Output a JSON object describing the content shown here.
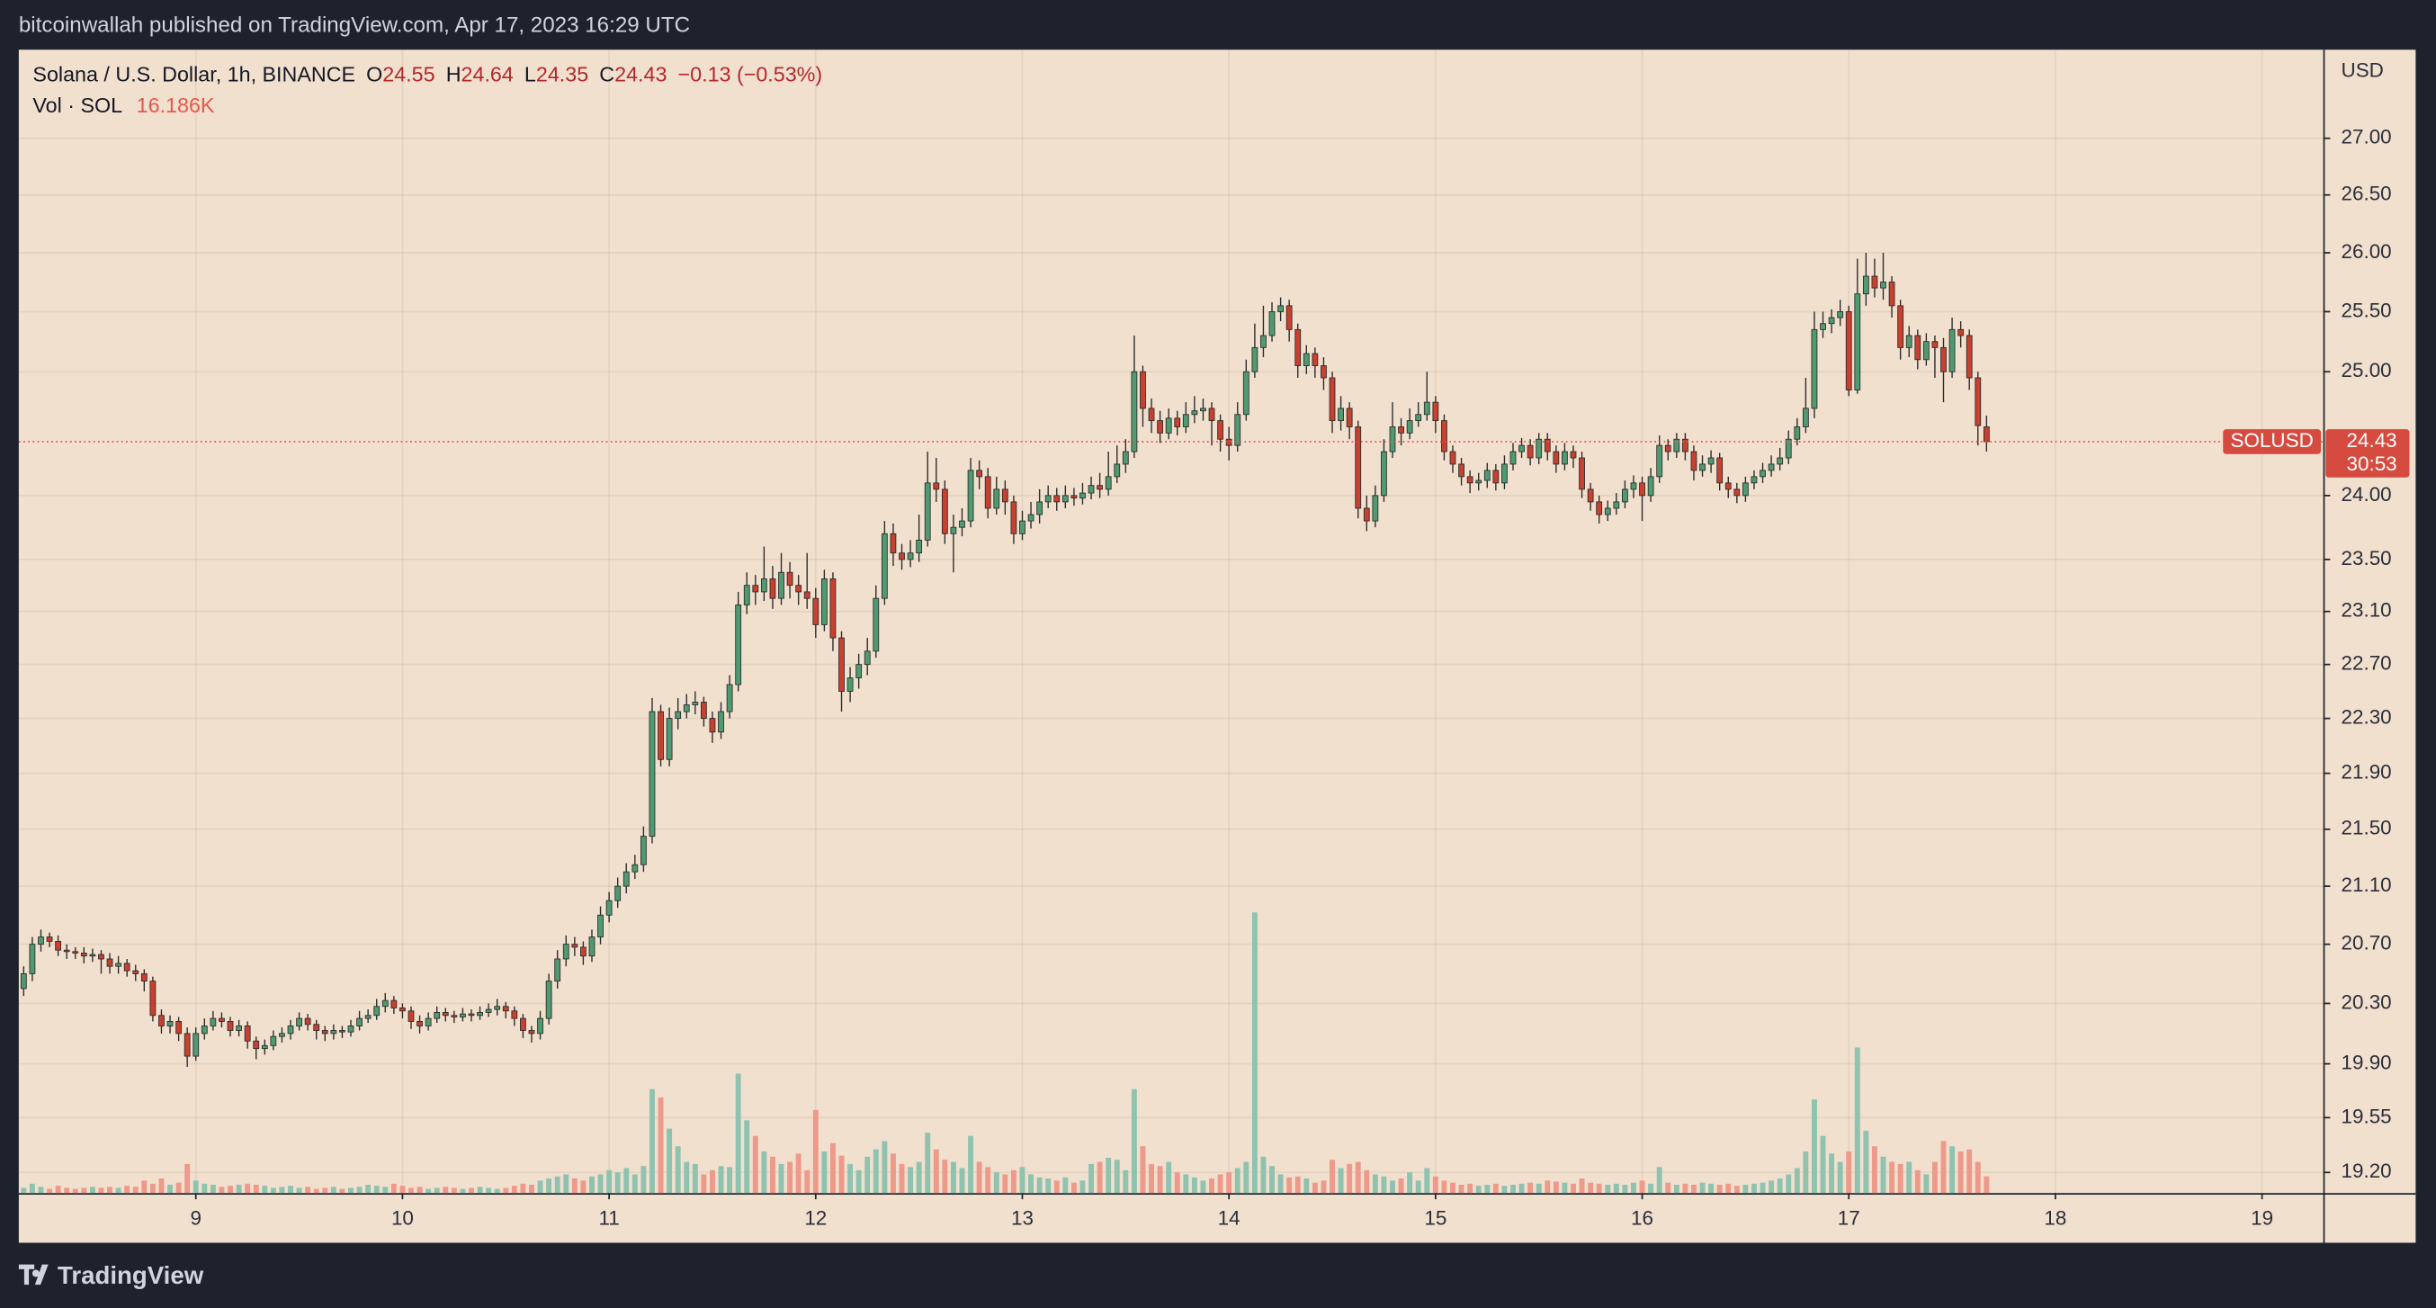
{
  "header": {
    "text": "bitcoinwallah published on TradingView.com, Apr 17, 2023 16:29 UTC"
  },
  "footer": {
    "brand": "TradingView"
  },
  "chart_data": {
    "type": "candlestick",
    "title": "Solana / U.S. Dollar, 1h, BINANCE",
    "symbol": "SOLUSD",
    "currency": "USD",
    "change": "−0.13 (−0.53%)",
    "ohlc_labels": [
      "O",
      "H",
      "L",
      "C"
    ],
    "countdown": "30:53",
    "log": true,
    "grid": true,
    "up_color": "#4f9a70",
    "down_color": "#c8402f",
    "volume_up_color": "#8fc3b0",
    "volume_down_color": "#ee9a8b",
    "price_line_color": "#e0564b",
    "xlim": [
      -0.57,
      267.2
    ],
    "xticks": [
      {
        "value": 20,
        "label": "9"
      },
      {
        "value": 44,
        "label": "10"
      },
      {
        "value": 68,
        "label": "11"
      },
      {
        "value": 92,
        "label": "12"
      },
      {
        "value": 116,
        "label": "13"
      },
      {
        "value": 140,
        "label": "14"
      },
      {
        "value": 164,
        "label": "15"
      },
      {
        "value": 188,
        "label": "16"
      },
      {
        "value": 212,
        "label": "17"
      },
      {
        "value": 236,
        "label": "18"
      },
      {
        "value": 260,
        "label": "19"
      }
    ],
    "ylim": [
      19.07,
      27.8
    ],
    "yticks": [
      {
        "value": 27,
        "label": "27.00"
      },
      {
        "value": 26.5,
        "label": "26.50"
      },
      {
        "value": 26,
        "label": "26.00"
      },
      {
        "value": 25.5,
        "label": "25.50"
      },
      {
        "value": 25,
        "label": "25.00"
      },
      {
        "value": 24,
        "label": "24.00"
      },
      {
        "value": 23.5,
        "label": "23.50"
      },
      {
        "value": 23.1,
        "label": "23.10"
      },
      {
        "value": 22.7,
        "label": "22.70"
      },
      {
        "value": 22.3,
        "label": "22.30"
      },
      {
        "value": 21.9,
        "label": "21.90"
      },
      {
        "value": 21.5,
        "label": "21.50"
      },
      {
        "value": 21.1,
        "label": "21.10"
      },
      {
        "value": 20.7,
        "label": "20.70"
      },
      {
        "value": 20.3,
        "label": "20.30"
      },
      {
        "value": 19.9,
        "label": "19.90"
      },
      {
        "value": 19.55,
        "label": "19.55"
      },
      {
        "value": 19.2,
        "label": "19.20"
      }
    ],
    "y2lim": [
      0,
      1100000
    ],
    "open": [
      20.4,
      20.5,
      20.7,
      20.75,
      20.72,
      20.66,
      20.65,
      20.64,
      20.62,
      20.63,
      20.6,
      20.55,
      20.57,
      20.52,
      20.5,
      20.45,
      20.22,
      20.15,
      20.18,
      20.1,
      19.95,
      20.1,
      20.15,
      20.2,
      20.18,
      20.12,
      20.15,
      20.05,
      20.0,
      20.02,
      20.08,
      20.1,
      20.15,
      20.2,
      20.16,
      20.12,
      20.1,
      20.12,
      20.11,
      20.15,
      20.2,
      20.22,
      20.28,
      20.32,
      20.27,
      20.25,
      20.18,
      20.15,
      20.2,
      20.24,
      20.22,
      20.21,
      20.23,
      20.22,
      20.24,
      20.26,
      20.28,
      20.25,
      20.2,
      20.12,
      20.1,
      20.2,
      20.45,
      20.6,
      20.7,
      20.68,
      20.62,
      20.75,
      20.9,
      21.0,
      21.1,
      21.2,
      21.25,
      21.45,
      22.35,
      22.0,
      22.3,
      22.35,
      22.4,
      22.42,
      22.3,
      22.2,
      22.35,
      22.55,
      23.15,
      23.3,
      23.25,
      23.35,
      23.2,
      23.4,
      23.3,
      23.25,
      23.2,
      23.0,
      23.35,
      22.9,
      22.5,
      22.6,
      22.7,
      22.8,
      23.2,
      23.7,
      23.55,
      23.5,
      23.55,
      23.65,
      24.1,
      24.05,
      23.7,
      23.75,
      23.8,
      24.2,
      24.15,
      23.9,
      24.05,
      23.95,
      23.7,
      23.8,
      23.85,
      23.95,
      24.0,
      23.95,
      24.0,
      23.98,
      24.02,
      24.08,
      24.05,
      24.15,
      24.25,
      24.35,
      25.0,
      24.7,
      24.6,
      24.5,
      24.62,
      24.55,
      24.65,
      24.68,
      24.7,
      24.6,
      24.45,
      24.4,
      24.65,
      25.0,
      25.2,
      25.3,
      25.5,
      25.55,
      25.35,
      25.05,
      25.15,
      25.05,
      24.95,
      24.6,
      24.7,
      24.55,
      23.9,
      23.8,
      24.0,
      24.35,
      24.55,
      24.5,
      24.6,
      24.65,
      24.75,
      24.6,
      24.35,
      24.25,
      24.15,
      24.1,
      24.12,
      24.2,
      24.1,
      24.25,
      24.35,
      24.4,
      24.3,
      24.45,
      24.35,
      24.25,
      24.35,
      24.3,
      24.05,
      23.95,
      23.85,
      23.9,
      23.95,
      24.05,
      24.1,
      24.0,
      24.15,
      24.4,
      24.35,
      24.45,
      24.35,
      24.2,
      24.25,
      24.3,
      24.1,
      24.05,
      24.0,
      24.1,
      24.15,
      24.2,
      24.25,
      24.3,
      24.45,
      24.55,
      24.7,
      25.35,
      25.4,
      25.45,
      25.5,
      24.85,
      25.65,
      25.8,
      25.7,
      25.75,
      25.55,
      25.2,
      25.3,
      25.1,
      25.25,
      25.2,
      25.0,
      25.35,
      25.3,
      24.95,
      24.55
    ],
    "high": [
      20.55,
      20.75,
      20.8,
      20.78,
      20.76,
      20.7,
      20.68,
      20.68,
      20.67,
      20.66,
      20.64,
      20.62,
      20.6,
      20.56,
      20.53,
      20.48,
      20.26,
      20.22,
      20.21,
      20.14,
      20.14,
      20.2,
      20.25,
      20.24,
      20.21,
      20.19,
      20.18,
      20.08,
      20.06,
      20.12,
      20.14,
      20.19,
      20.24,
      20.23,
      20.19,
      20.15,
      20.16,
      20.15,
      20.19,
      20.25,
      20.26,
      20.33,
      20.37,
      20.35,
      20.3,
      20.28,
      20.22,
      20.24,
      20.28,
      20.27,
      20.25,
      20.27,
      20.26,
      20.28,
      20.3,
      20.33,
      20.31,
      20.28,
      20.23,
      20.15,
      20.25,
      20.5,
      20.66,
      20.76,
      20.75,
      20.72,
      20.8,
      20.96,
      21.06,
      21.16,
      21.26,
      21.32,
      21.52,
      22.45,
      22.4,
      22.38,
      22.45,
      22.48,
      22.5,
      22.46,
      22.35,
      22.42,
      22.62,
      23.25,
      23.4,
      23.38,
      23.6,
      23.45,
      23.55,
      23.48,
      23.38,
      23.55,
      23.28,
      23.42,
      23.4,
      22.95,
      22.68,
      22.78,
      22.9,
      23.3,
      23.8,
      23.78,
      23.62,
      23.65,
      23.85,
      24.35,
      24.3,
      24.12,
      23.85,
      23.9,
      24.3,
      24.28,
      24.22,
      24.15,
      24.12,
      24.0,
      23.88,
      23.95,
      24.05,
      24.08,
      24.06,
      24.08,
      24.06,
      24.1,
      24.15,
      24.18,
      24.35,
      24.4,
      24.45,
      25.3,
      25.05,
      24.78,
      24.68,
      24.7,
      24.68,
      24.75,
      24.8,
      24.78,
      24.75,
      24.65,
      24.55,
      24.75,
      25.1,
      25.4,
      25.55,
      25.58,
      25.62,
      25.6,
      25.4,
      25.22,
      25.2,
      25.12,
      25.0,
      24.8,
      24.75,
      24.6,
      24.0,
      24.08,
      24.45,
      24.75,
      24.62,
      24.7,
      24.75,
      25.0,
      24.8,
      24.65,
      24.4,
      24.3,
      24.2,
      24.18,
      24.26,
      24.25,
      24.32,
      24.42,
      24.46,
      24.45,
      24.5,
      24.5,
      24.4,
      24.42,
      24.4,
      24.35,
      24.1,
      24.0,
      23.96,
      24.02,
      24.12,
      24.16,
      24.15,
      24.22,
      24.48,
      24.45,
      24.5,
      24.5,
      24.4,
      24.32,
      24.36,
      24.34,
      24.15,
      24.1,
      24.15,
      24.2,
      24.26,
      24.32,
      24.38,
      24.52,
      24.62,
      24.95,
      25.5,
      25.5,
      25.52,
      25.6,
      25.55,
      25.95,
      26.0,
      25.95,
      26.0,
      25.8,
      25.6,
      25.38,
      25.35,
      25.32,
      25.3,
      25.28,
      25.45,
      25.42,
      25.35,
      25.0,
      24.64
    ],
    "low": [
      20.35,
      20.45,
      20.65,
      20.68,
      20.62,
      20.6,
      20.6,
      20.57,
      20.58,
      20.5,
      20.5,
      20.5,
      20.48,
      20.45,
      20.38,
      20.18,
      20.1,
      20.1,
      20.05,
      19.88,
      19.92,
      20.06,
      20.12,
      20.14,
      20.08,
      20.08,
      20.0,
      19.93,
      19.96,
      19.99,
      20.04,
      20.06,
      20.12,
      20.12,
      20.06,
      20.05,
      20.06,
      20.07,
      20.08,
      20.12,
      20.17,
      20.19,
      20.24,
      20.23,
      20.2,
      20.13,
      20.1,
      20.12,
      20.17,
      20.18,
      20.17,
      20.18,
      20.18,
      20.19,
      20.21,
      20.22,
      20.2,
      20.15,
      20.07,
      20.04,
      20.06,
      20.16,
      20.4,
      20.55,
      20.62,
      20.56,
      20.58,
      20.7,
      20.85,
      20.95,
      21.05,
      21.15,
      21.2,
      21.4,
      21.95,
      21.95,
      22.22,
      22.3,
      22.33,
      22.24,
      22.12,
      22.15,
      22.3,
      22.5,
      23.08,
      23.15,
      23.18,
      23.12,
      23.15,
      23.2,
      23.15,
      23.12,
      22.9,
      22.95,
      22.8,
      22.35,
      22.42,
      22.52,
      22.62,
      22.75,
      23.15,
      23.45,
      23.42,
      23.44,
      23.48,
      23.6,
      23.95,
      23.62,
      23.4,
      23.68,
      23.75,
      24.05,
      23.82,
      23.85,
      23.85,
      23.62,
      23.65,
      23.74,
      23.78,
      23.9,
      23.88,
      23.9,
      23.92,
      23.93,
      23.97,
      23.98,
      24.0,
      24.1,
      24.18,
      24.3,
      24.55,
      24.5,
      24.42,
      24.45,
      24.48,
      24.5,
      24.58,
      24.6,
      24.4,
      24.35,
      24.28,
      24.35,
      24.6,
      24.95,
      25.12,
      25.25,
      25.42,
      25.25,
      24.95,
      24.98,
      24.95,
      24.85,
      24.5,
      24.52,
      24.45,
      23.82,
      23.72,
      23.75,
      23.95,
      24.3,
      24.4,
      24.45,
      24.55,
      24.6,
      24.5,
      24.28,
      24.18,
      24.08,
      24.02,
      24.04,
      24.06,
      24.04,
      24.05,
      24.2,
      24.3,
      24.24,
      24.25,
      24.28,
      24.18,
      24.2,
      24.22,
      23.98,
      23.88,
      23.78,
      23.8,
      23.85,
      23.9,
      23.98,
      23.8,
      23.95,
      24.1,
      24.28,
      24.3,
      24.28,
      24.12,
      24.15,
      24.18,
      24.04,
      23.98,
      23.94,
      23.95,
      24.05,
      24.1,
      24.15,
      24.2,
      24.25,
      24.4,
      24.5,
      24.62,
      25.28,
      25.32,
      25.38,
      24.8,
      24.82,
      25.55,
      25.62,
      25.6,
      25.45,
      25.1,
      25.12,
      25.02,
      25.05,
      24.95,
      24.75,
      24.95,
      25.2,
      24.85,
      24.4,
      24.35
    ],
    "close": [
      20.5,
      20.7,
      20.75,
      20.72,
      20.66,
      20.65,
      20.64,
      20.62,
      20.63,
      20.6,
      20.55,
      20.57,
      20.52,
      20.5,
      20.45,
      20.22,
      20.15,
      20.18,
      20.1,
      19.95,
      20.1,
      20.15,
      20.2,
      20.18,
      20.12,
      20.15,
      20.05,
      20.0,
      20.02,
      20.08,
      20.1,
      20.15,
      20.2,
      20.16,
      20.12,
      20.1,
      20.12,
      20.11,
      20.15,
      20.2,
      20.22,
      20.28,
      20.32,
      20.27,
      20.25,
      20.18,
      20.15,
      20.2,
      20.24,
      20.22,
      20.21,
      20.23,
      20.22,
      20.24,
      20.26,
      20.28,
      20.25,
      20.2,
      20.12,
      20.1,
      20.2,
      20.45,
      20.6,
      20.7,
      20.68,
      20.62,
      20.75,
      20.9,
      21.0,
      21.1,
      21.2,
      21.25,
      21.45,
      22.35,
      22.0,
      22.3,
      22.35,
      22.4,
      22.42,
      22.3,
      22.2,
      22.35,
      22.55,
      23.15,
      23.3,
      23.25,
      23.35,
      23.2,
      23.4,
      23.3,
      23.25,
      23.2,
      23.0,
      23.35,
      22.9,
      22.5,
      22.6,
      22.7,
      22.8,
      23.2,
      23.7,
      23.55,
      23.5,
      23.55,
      23.65,
      24.1,
      24.05,
      23.7,
      23.75,
      23.8,
      24.2,
      24.15,
      23.9,
      24.05,
      23.95,
      23.7,
      23.8,
      23.85,
      23.95,
      24.0,
      23.95,
      24.0,
      23.98,
      24.02,
      24.08,
      24.05,
      24.15,
      24.25,
      24.35,
      25.0,
      24.7,
      24.6,
      24.5,
      24.62,
      24.55,
      24.65,
      24.68,
      24.7,
      24.6,
      24.45,
      24.4,
      24.65,
      25.0,
      25.2,
      25.3,
      25.5,
      25.55,
      25.35,
      25.05,
      25.15,
      25.05,
      24.95,
      24.6,
      24.7,
      24.55,
      23.9,
      23.8,
      24.0,
      24.35,
      24.55,
      24.5,
      24.6,
      24.65,
      24.75,
      24.6,
      24.35,
      24.25,
      24.15,
      24.1,
      24.12,
      24.2,
      24.1,
      24.25,
      24.35,
      24.4,
      24.3,
      24.45,
      24.35,
      24.25,
      24.35,
      24.3,
      24.05,
      23.95,
      23.85,
      23.9,
      23.95,
      24.05,
      24.1,
      24.0,
      24.15,
      24.4,
      24.35,
      24.45,
      24.35,
      24.2,
      24.25,
      24.3,
      24.1,
      24.05,
      24.0,
      24.1,
      24.15,
      24.2,
      24.25,
      24.3,
      24.45,
      24.55,
      24.7,
      25.35,
      25.4,
      25.45,
      25.5,
      24.85,
      25.65,
      25.8,
      25.7,
      25.75,
      25.55,
      25.2,
      25.3,
      25.1,
      25.25,
      25.2,
      25.0,
      25.35,
      25.3,
      24.95,
      24.56,
      24.43
    ],
    "volume": {
      "name": "Vol · SOL",
      "axis": "y2",
      "value_label": "16.186K",
      "values": [
        5000,
        9000,
        6000,
        4000,
        7000,
        5000,
        4000,
        5000,
        6000,
        5000,
        6000,
        5000,
        7000,
        6000,
        12000,
        9000,
        14000,
        8000,
        10000,
        28000,
        12000,
        9000,
        8000,
        6000,
        7000,
        8000,
        9000,
        8000,
        7000,
        5000,
        6000,
        7000,
        5000,
        6000,
        4000,
        5000,
        6000,
        4000,
        5000,
        6000,
        8000,
        7000,
        6000,
        9000,
        7000,
        5000,
        6000,
        4000,
        5000,
        6000,
        5000,
        4000,
        5000,
        6000,
        5000,
        4000,
        5000,
        7000,
        9000,
        8000,
        12000,
        14000,
        16000,
        18000,
        14000,
        12000,
        16000,
        18000,
        22000,
        20000,
        24000,
        18000,
        26000,
        100000,
        92000,
        62000,
        45000,
        30000,
        28000,
        18000,
        22000,
        26000,
        25000,
        115000,
        70000,
        55000,
        40000,
        35000,
        28000,
        30000,
        38000,
        22000,
        80000,
        40000,
        48000,
        36000,
        28000,
        22000,
        35000,
        42000,
        50000,
        38000,
        28000,
        25000,
        30000,
        58000,
        42000,
        32000,
        30000,
        24000,
        55000,
        30000,
        25000,
        20000,
        18000,
        22000,
        25000,
        18000,
        15000,
        14000,
        12000,
        15000,
        10000,
        12000,
        28000,
        30000,
        34000,
        32000,
        22000,
        100000,
        45000,
        28000,
        26000,
        30000,
        20000,
        18000,
        15000,
        12000,
        14000,
        18000,
        20000,
        24000,
        30000,
        270000,
        35000,
        26000,
        18000,
        15000,
        16000,
        14000,
        10000,
        12000,
        32000,
        24000,
        28000,
        30000,
        22000,
        18000,
        16000,
        12000,
        14000,
        20000,
        12000,
        24000,
        16000,
        12000,
        10000,
        8000,
        9000,
        7000,
        8000,
        9000,
        7000,
        8000,
        9000,
        10000,
        9000,
        12000,
        11000,
        10000,
        9000,
        14000,
        10000,
        9000,
        8000,
        9000,
        8000,
        10000,
        12000,
        9000,
        25000,
        10000,
        8000,
        9000,
        8000,
        10000,
        9000,
        8000,
        9000,
        7000,
        8000,
        9000,
        10000,
        12000,
        14000,
        18000,
        24000,
        40000,
        90000,
        55000,
        38000,
        30000,
        40000,
        140000,
        60000,
        45000,
        35000,
        30000,
        28000,
        30000,
        22000,
        18000,
        30000,
        50000,
        45000,
        40000,
        42000,
        30000,
        16186
      ]
    }
  }
}
